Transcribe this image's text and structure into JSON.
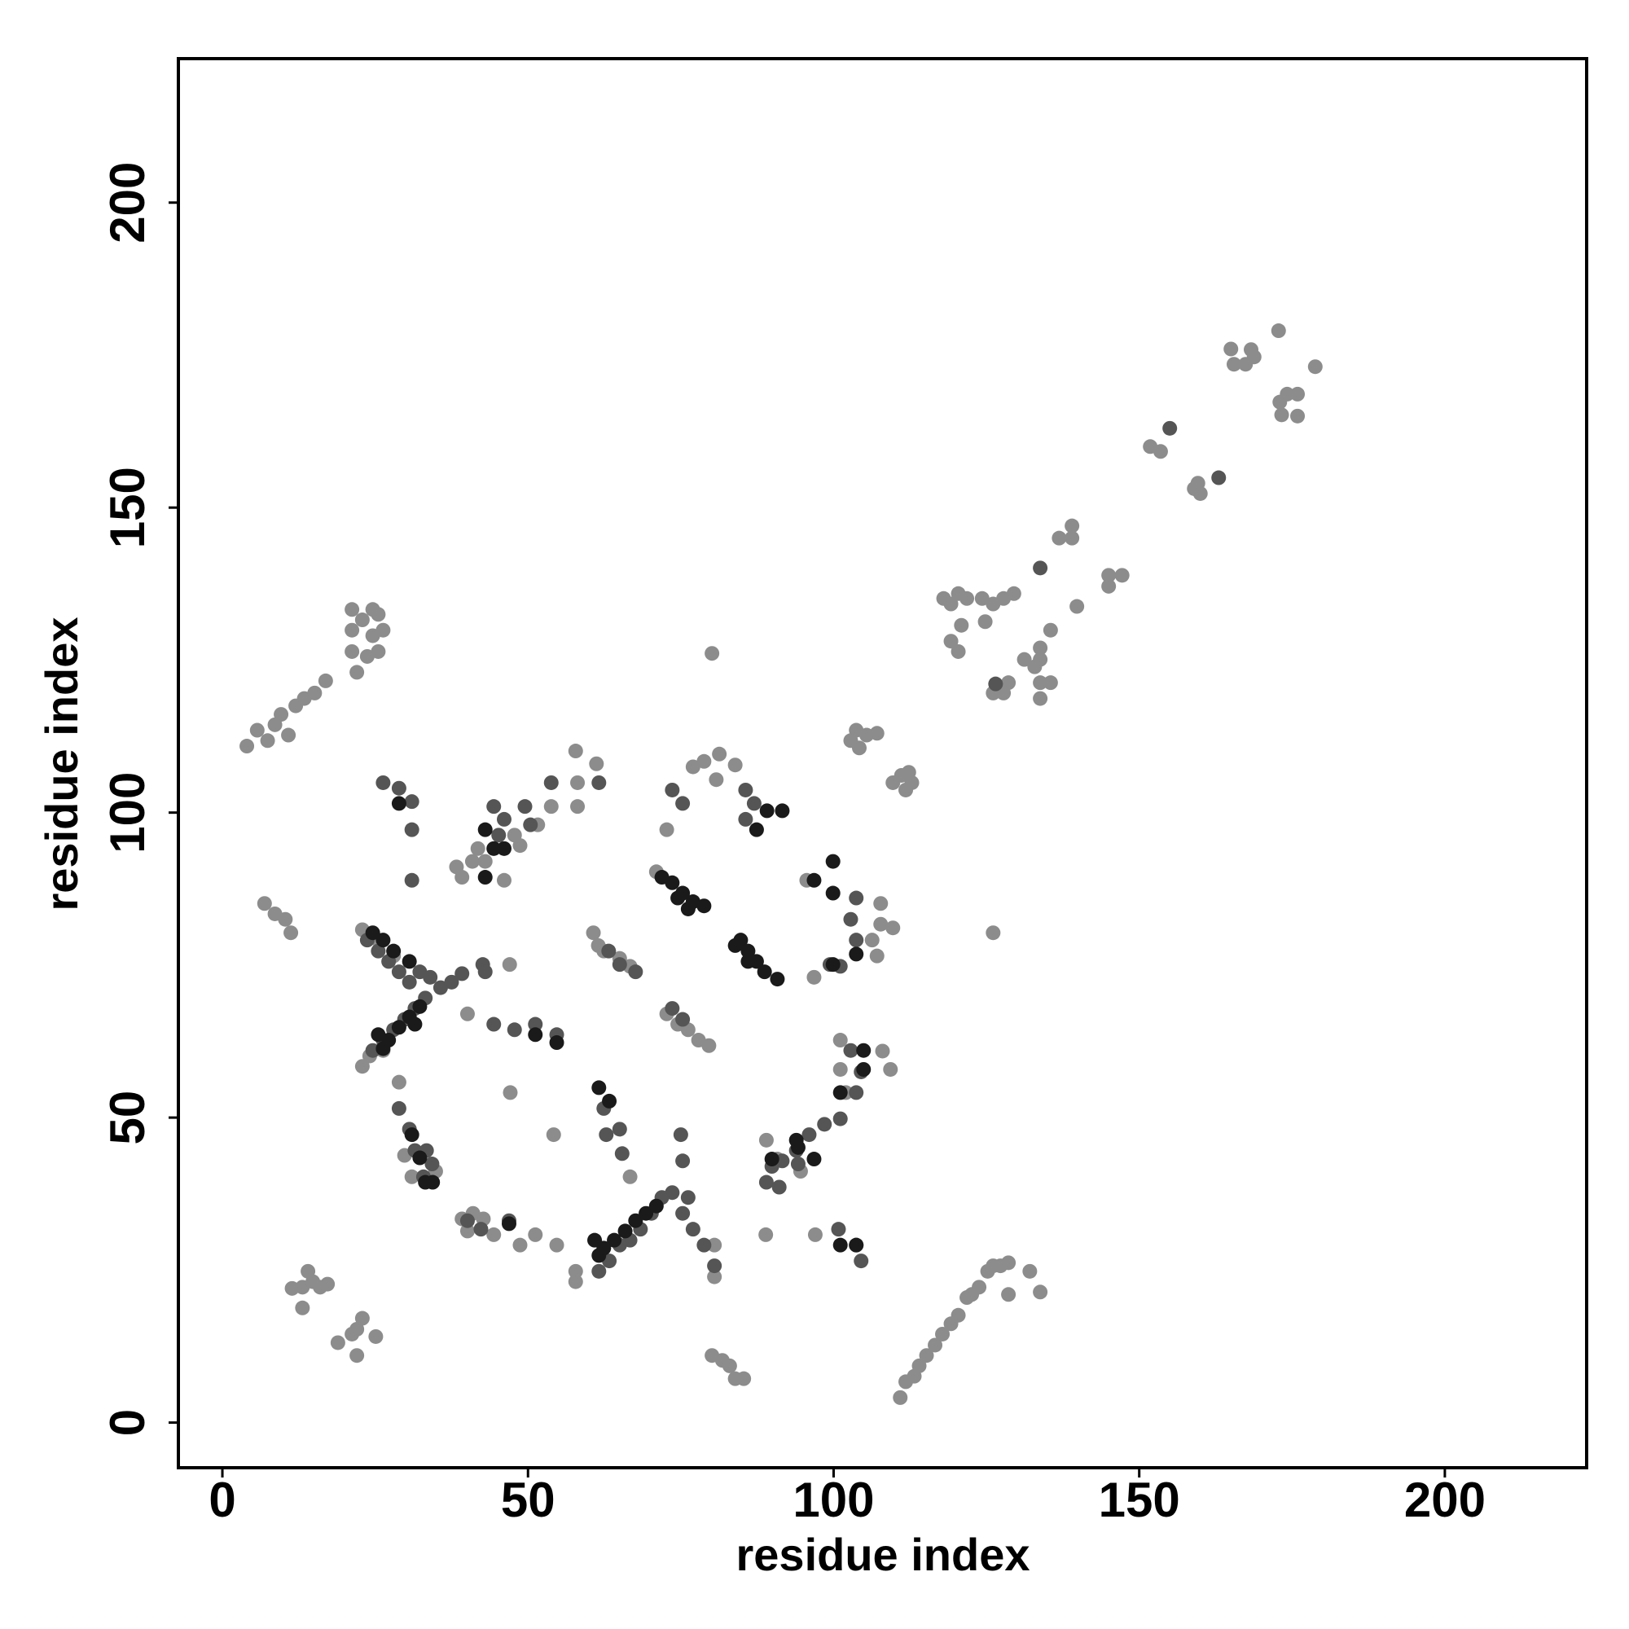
{
  "chart_data": {
    "type": "scatter",
    "xlabel": "residue index",
    "ylabel": "residue index",
    "xlim": [
      -7.2,
      223.2
    ],
    "ylim": [
      -7.4,
      223.6
    ],
    "xticks": [
      0,
      50,
      100,
      150,
      200
    ],
    "yticks": [
      0,
      50,
      100,
      150,
      200
    ],
    "grid": false,
    "series": [
      {
        "color": "#8c8c8c",
        "x": [
          172.8,
          165.0,
          165.5,
          167.4,
          168.3,
          168.8,
          178.8,
          173.0,
          174.2,
          175.9,
          173.3,
          175.9,
          151.8,
          153.5,
          159.0,
          160.0,
          159.6,
          139.0,
          136.9,
          139.0,
          145.0,
          147.2,
          145.0,
          139.8,
          118.0,
          119.2,
          120.4,
          121.8,
          120.9,
          119.2,
          120.4,
          124.3,
          126.1,
          127.8,
          129.5,
          124.8,
          131.2,
          133.8,
          135.5,
          133.8,
          132.9,
          133.8,
          135.5,
          133.8,
          126.1,
          127.8,
          128.6,
          102.8,
          104.2,
          105.4,
          107.1,
          103.7,
          109.7,
          111.1,
          112.3,
          112.8,
          111.8,
          80.1,
          126.1,
          4.0,
          5.7,
          7.4,
          8.6,
          9.6,
          10.8,
          12.0,
          13.4,
          15.1,
          16.9,
          21.2,
          21.2,
          21.2,
          22.0,
          22.9,
          23.7,
          25.5,
          25.5,
          24.6,
          26.3,
          24.6,
          6.9,
          8.6,
          10.3,
          11.2,
          11.4,
          13.1,
          14.0,
          14.8,
          13.1,
          16.0,
          17.2,
          18.9,
          21.2,
          22.9,
          22.0,
          25.1,
          22.0,
          110.9,
          111.8,
          113.2,
          114.0,
          115.2,
          116.6,
          117.8,
          119.2,
          120.4,
          121.8,
          122.6,
          123.8,
          125.2,
          126.1,
          127.3,
          128.6,
          132.1,
          133.8,
          128.6,
          80.1,
          81.8,
          83.0,
          83.9,
          85.3,
          57.8,
          58.1,
          61.2,
          58.1,
          66.7,
          47.1,
          54.2,
          88.9,
          97.0,
          60.7,
          62.4,
          65.0,
          66.7,
          61.5,
          72.7,
          74.5,
          76.2,
          77.9,
          79.6,
          71.0,
          72.7,
          77.0,
          78.8,
          81.3,
          83.9,
          80.8,
          107.7,
          107.7,
          106.3,
          107.1,
          109.7,
          109.3,
          108.0,
          101.1,
          101.1,
          102.0,
          39.2,
          41.0,
          42.7,
          40.1,
          44.4,
          48.7,
          51.2,
          54.7,
          57.8,
          57.8,
          28.9,
          29.8,
          31.0,
          34.9,
          22.9,
          25.5,
          28.0,
          22.9,
          24.1,
          26.3,
          38.3,
          39.2,
          40.9,
          41.8,
          43.0,
          47.8,
          48.7,
          51.6,
          53.8,
          46.1,
          40.1,
          47.0,
          80.5,
          80.5,
          89.0,
          90.8,
          94.6,
          96.8,
          95.6
        ],
        "values": [
          179.0,
          176.0,
          173.5,
          173.5,
          175.9,
          174.7,
          173.1,
          167.3,
          168.6,
          168.6,
          165.2,
          165.0,
          160.0,
          159.2,
          153.1,
          152.3,
          154.0,
          147.0,
          145.0,
          145.0,
          138.9,
          138.9,
          137.1,
          133.8,
          135.1,
          134.2,
          135.9,
          135.1,
          130.7,
          128.1,
          126.4,
          135.1,
          134.2,
          135.1,
          135.9,
          131.3,
          125.1,
          127.0,
          129.9,
          125.1,
          123.9,
          121.3,
          121.3,
          118.7,
          119.6,
          119.6,
          121.3,
          111.8,
          110.6,
          112.7,
          113.0,
          113.5,
          104.9,
          106.1,
          106.6,
          104.9,
          103.7,
          126.1,
          80.3,
          110.9,
          113.5,
          111.8,
          114.4,
          116.1,
          112.7,
          117.5,
          118.7,
          119.6,
          121.6,
          133.3,
          129.9,
          126.4,
          123.0,
          131.6,
          125.6,
          126.4,
          132.5,
          129.0,
          129.9,
          133.3,
          85.1,
          83.4,
          82.5,
          80.3,
          22.0,
          22.2,
          24.8,
          23.1,
          18.8,
          22.2,
          22.7,
          13.1,
          14.5,
          17.1,
          11.0,
          14.1,
          15.3,
          4.1,
          6.7,
          7.6,
          9.3,
          11.0,
          12.7,
          14.5,
          16.2,
          17.6,
          20.5,
          21.0,
          22.2,
          24.8,
          25.7,
          25.7,
          26.2,
          24.8,
          21.4,
          21.0,
          11.0,
          10.2,
          9.3,
          7.2,
          7.2,
          110.1,
          104.9,
          108.0,
          101.0,
          40.3,
          54.1,
          47.2,
          30.8,
          30.8,
          80.3,
          77.3,
          76.1,
          74.8,
          78.2,
          67.0,
          65.3,
          64.4,
          62.7,
          61.8,
          90.3,
          97.2,
          107.5,
          108.4,
          109.6,
          107.8,
          105.4,
          85.1,
          81.7,
          79.1,
          76.5,
          81.1,
          57.9,
          60.9,
          62.7,
          57.9,
          54.1,
          33.4,
          34.3,
          33.4,
          31.4,
          30.8,
          29.1,
          30.8,
          29.1,
          24.8,
          23.1,
          55.8,
          43.8,
          40.3,
          41.2,
          80.8,
          79.1,
          76.5,
          58.4,
          60.1,
          61.0,
          91.1,
          89.4,
          92.0,
          94.1,
          92.0,
          96.3,
          94.6,
          98.0,
          101.0,
          88.9,
          67.0,
          75.1,
          29.1,
          23.9,
          46.3,
          43.2,
          41.2,
          73.0,
          88.9
        ]
      },
      {
        "color": "#555555",
        "x": [
          155.0,
          163.0,
          133.8,
          126.5,
          26.3,
          28.9,
          31.0,
          31.0,
          31.0,
          28.9,
          30.6,
          31.5,
          32.9,
          34.3,
          33.4,
          44.4,
          46.1,
          45.2,
          49.5,
          50.4,
          42.6,
          44.4,
          47.8,
          51.2,
          54.7,
          53.8,
          61.6,
          62.8,
          65.0,
          65.4,
          62.4,
          75.0,
          75.3,
          73.6,
          75.3,
          85.6,
          87.0,
          85.6,
          75.3,
          73.6,
          63.2,
          65.0,
          67.6,
          103.7,
          102.8,
          103.7,
          101.1,
          99.4,
          102.8,
          104.5,
          103.7,
          101.1,
          98.5,
          96.0,
          93.9,
          91.6,
          94.2,
          89.9,
          89.0,
          91.1,
          73.6,
          75.3,
          77.0,
          78.8,
          80.5,
          76.2,
          71.9,
          70.2,
          68.4,
          66.7,
          65.0,
          63.3,
          61.6,
          23.7,
          25.5,
          27.2,
          28.9,
          30.6,
          32.3,
          34.0,
          35.7,
          37.5,
          39.2,
          43.0,
          31.5,
          29.8,
          28.0,
          26.3,
          24.6,
          33.2,
          40.1,
          42.3,
          46.9,
          100.8,
          103.7,
          104.5
        ],
        "values": [
          163.0,
          154.9,
          140.1,
          121.1,
          104.9,
          104.0,
          101.8,
          97.2,
          88.9,
          51.5,
          48.1,
          44.6,
          40.3,
          42.4,
          44.6,
          101.0,
          98.9,
          96.3,
          101.0,
          98.0,
          75.1,
          65.3,
          64.4,
          65.3,
          63.6,
          104.9,
          104.9,
          47.2,
          48.1,
          44.1,
          51.5,
          47.2,
          42.9,
          103.7,
          101.5,
          103.7,
          101.5,
          98.9,
          66.1,
          67.9,
          77.3,
          75.1,
          73.9,
          86.0,
          82.5,
          79.1,
          74.8,
          75.1,
          61.0,
          57.5,
          54.1,
          49.8,
          48.9,
          47.2,
          44.6,
          42.9,
          42.4,
          42.0,
          39.4,
          38.6,
          37.7,
          34.3,
          31.7,
          29.1,
          25.7,
          36.9,
          36.9,
          34.3,
          31.7,
          29.9,
          29.1,
          26.5,
          24.8,
          79.1,
          77.3,
          75.6,
          73.9,
          72.2,
          73.9,
          73.0,
          71.3,
          72.2,
          73.6,
          73.9,
          67.9,
          66.1,
          64.4,
          62.7,
          61.0,
          69.6,
          33.1,
          31.7,
          33.1,
          31.7,
          29.1,
          26.5
        ]
      },
      {
        "color": "#1a1a1a",
        "x": [
          28.9,
          43.0,
          44.4,
          46.1,
          43.0,
          89.1,
          91.6,
          87.4,
          71.9,
          73.6,
          75.3,
          77.0,
          78.8,
          74.5,
          76.2,
          84.8,
          86.0,
          87.4,
          88.7,
          90.8,
          86.0,
          83.9,
          96.8,
          99.9,
          99.9,
          103.7,
          99.9,
          25.5,
          27.2,
          28.9,
          30.6,
          32.3,
          31.5,
          26.3,
          24.6,
          26.3,
          28.0,
          30.6,
          31.0,
          32.3,
          33.2,
          34.4,
          54.7,
          51.2,
          61.6,
          63.3,
          60.9,
          61.6,
          62.4,
          64.1,
          65.9,
          67.6,
          69.3,
          71.0,
          46.9,
          93.9,
          96.8,
          94.2,
          101.1,
          89.9,
          101.1,
          103.7,
          104.9,
          104.9
        ],
        "values": [
          101.5,
          97.2,
          94.1,
          94.1,
          89.4,
          100.3,
          100.3,
          97.2,
          89.4,
          88.5,
          86.8,
          85.4,
          84.7,
          86.0,
          84.2,
          79.1,
          77.3,
          75.6,
          73.9,
          72.7,
          75.6,
          78.2,
          88.9,
          92.0,
          86.8,
          76.8,
          75.1,
          63.6,
          62.7,
          64.8,
          66.5,
          68.2,
          65.3,
          61.3,
          80.3,
          79.1,
          77.3,
          75.6,
          47.2,
          43.4,
          39.4,
          39.4,
          62.3,
          63.6,
          54.9,
          52.7,
          29.9,
          27.4,
          28.6,
          29.9,
          31.4,
          33.1,
          34.3,
          35.5,
          32.6,
          46.3,
          43.2,
          45.1,
          54.1,
          43.2,
          29.1,
          29.1,
          61.0,
          57.9
        ]
      }
    ]
  }
}
